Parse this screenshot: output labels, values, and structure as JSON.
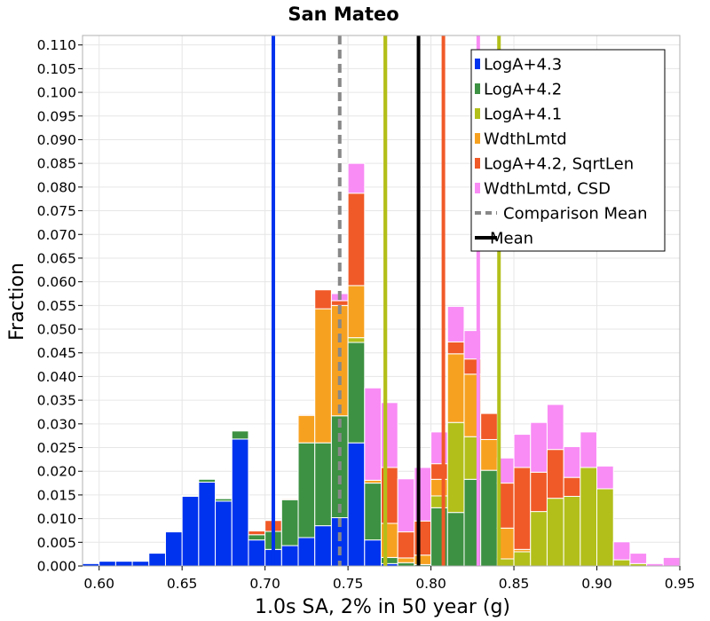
{
  "chart_data": {
    "type": "bar",
    "stacked": true,
    "title": "San Mateo",
    "xlabel": "1.0s SA, 2% in 50 year (g)",
    "ylabel": "Fraction",
    "xlim": [
      0.59,
      0.95
    ],
    "ylim": [
      0.0,
      0.112
    ],
    "x_ticks": [
      "0.60",
      "0.65",
      "0.70",
      "0.75",
      "0.80",
      "0.85",
      "0.90",
      "0.95"
    ],
    "x_tick_values": [
      0.6,
      0.65,
      0.7,
      0.75,
      0.8,
      0.85,
      0.9,
      0.95
    ],
    "y_ticks": [
      "0.000",
      "0.005",
      "0.010",
      "0.015",
      "0.020",
      "0.025",
      "0.030",
      "0.035",
      "0.040",
      "0.045",
      "0.050",
      "0.055",
      "0.060",
      "0.065",
      "0.070",
      "0.075",
      "0.080",
      "0.085",
      "0.090",
      "0.095",
      "0.100",
      "0.105",
      "0.110"
    ],
    "y_tick_values": [
      0.0,
      0.005,
      0.01,
      0.015,
      0.02,
      0.025,
      0.03,
      0.035,
      0.04,
      0.045,
      0.05,
      0.055,
      0.06,
      0.065,
      0.07,
      0.075,
      0.08,
      0.085,
      0.09,
      0.095,
      0.1,
      0.105,
      0.11
    ],
    "grid": true,
    "legend_position": "top-right",
    "bin_width": 0.01,
    "bin_centers": [
      0.595,
      0.605,
      0.615,
      0.625,
      0.635,
      0.645,
      0.655,
      0.665,
      0.675,
      0.685,
      0.695,
      0.705,
      0.715,
      0.725,
      0.735,
      0.745,
      0.755,
      0.765,
      0.775,
      0.785,
      0.795,
      0.805,
      0.815,
      0.825,
      0.835,
      0.845,
      0.855,
      0.865,
      0.875,
      0.885,
      0.895,
      0.905,
      0.915,
      0.925,
      0.935,
      0.945
    ],
    "series": [
      {
        "name": "LogA+4.3",
        "color": "#0033ee",
        "values": [
          0.0005,
          0.001,
          0.001,
          0.001,
          0.0027,
          0.0072,
          0.0147,
          0.0177,
          0.0137,
          0.0268,
          0.0055,
          0.0035,
          0.0043,
          0.006,
          0.0085,
          0.0102,
          0.026,
          0.0055,
          0.0005,
          0,
          0,
          0,
          0,
          0,
          0,
          0,
          0,
          0,
          0,
          0,
          0,
          0,
          0,
          0,
          0,
          0
        ]
      },
      {
        "name": "LogA+4.2",
        "color": "#3d9142",
        "values": [
          0,
          0,
          0,
          0,
          0,
          0,
          0.0002,
          0.0006,
          0.0005,
          0.0017,
          0.0011,
          0.0038,
          0.0097,
          0.02,
          0.0175,
          0.0215,
          0.0212,
          0.012,
          0.0013,
          0.0007,
          0.0003,
          0.0123,
          0.0113,
          0.0183,
          0.0202,
          0,
          0,
          0,
          0,
          0,
          0,
          0,
          0,
          0,
          0,
          0
        ]
      },
      {
        "name": "LogA+4.1",
        "color": "#b2bf1a",
        "values": [
          0,
          0,
          0,
          0,
          0,
          0,
          0,
          0,
          0,
          0,
          0,
          0,
          0,
          0,
          0,
          0,
          0.001,
          0,
          0,
          0,
          0,
          0.0025,
          0.019,
          0.009,
          0,
          0.0015,
          0.003,
          0.0115,
          0.0143,
          0.0147,
          0.0208,
          0.0163,
          0.0013,
          0.0005,
          0,
          0
        ]
      },
      {
        "name": "WdthLmtd",
        "color": "#f7a120",
        "values": [
          0,
          0,
          0,
          0,
          0,
          0,
          0,
          0,
          0,
          0,
          0,
          0,
          0,
          0.0058,
          0.0283,
          0.0233,
          0.011,
          0.0006,
          0.0072,
          0.001,
          0.002,
          0.0035,
          0.0145,
          0.0132,
          0.0065,
          0.0065,
          0.0005,
          0,
          0,
          0,
          0,
          0,
          0,
          0,
          0,
          0
        ]
      },
      {
        "name": "LogA+4.2, SqrtLen",
        "color": "#f05a28",
        "values": [
          0,
          0,
          0,
          0,
          0,
          0,
          0,
          0,
          0,
          0,
          0.0008,
          0.0023,
          0.0002,
          0.0002,
          0.004,
          0.001,
          0.0195,
          0,
          0.0118,
          0.0055,
          0.0072,
          0.0033,
          0.0025,
          0.0032,
          0.0055,
          0.0095,
          0.0173,
          0.0083,
          0.0103,
          0.004,
          0,
          0,
          0,
          0,
          0,
          0
        ]
      },
      {
        "name": "WdthLmtd, CSD",
        "color": "#f98cf5",
        "values": [
          0,
          0,
          0,
          0,
          0,
          0,
          0,
          0,
          0,
          0,
          0,
          0,
          0,
          0,
          0,
          0.0015,
          0.0063,
          0.0195,
          0.0137,
          0.0112,
          0.0113,
          0.0067,
          0.0075,
          0.006,
          0,
          0.0053,
          0.007,
          0.0105,
          0.0095,
          0.0065,
          0.0075,
          0.0048,
          0.0038,
          0.0022,
          0.0005,
          0.0018
        ]
      }
    ],
    "lines": [
      {
        "name": "LogA+4.3",
        "x": 0.705,
        "color": "#0033ee",
        "style": "solid",
        "in_legend": false
      },
      {
        "name": "Comparison Mean",
        "x": 0.745,
        "color": "#888888",
        "style": "dashed",
        "in_legend": true
      },
      {
        "name": "WdthLmtd",
        "x": 0.7725,
        "color": "#f7a120",
        "style": "solid",
        "in_legend": false
      },
      {
        "name": "LogA+4.1",
        "x": 0.7725,
        "color": "#b2bf1a",
        "style": "solid",
        "in_legend": false
      },
      {
        "name": "Mean",
        "x": 0.7925,
        "color": "#000000",
        "style": "solid",
        "in_legend": true
      },
      {
        "name": "LogA+4.2, SqrtLen",
        "x": 0.8075,
        "color": "#f05a28",
        "style": "solid",
        "in_legend": false
      },
      {
        "name": "WdthLmtd, CSD",
        "x": 0.8285,
        "color": "#f98cf5",
        "style": "solid",
        "in_legend": false
      },
      {
        "name": "LogA+4.1",
        "x": 0.841,
        "color": "#b2bf1a",
        "style": "solid",
        "in_legend": false
      }
    ],
    "legend": [
      {
        "label": "LogA+4.3",
        "color": "#0033ee",
        "kind": "patch"
      },
      {
        "label": "LogA+4.2",
        "color": "#3d9142",
        "kind": "patch"
      },
      {
        "label": "LogA+4.1",
        "color": "#b2bf1a",
        "kind": "patch"
      },
      {
        "label": "WdthLmtd",
        "color": "#f7a120",
        "kind": "patch"
      },
      {
        "label": "LogA+4.2, SqrtLen",
        "color": "#f05a28",
        "kind": "patch"
      },
      {
        "label": "WdthLmtd, CSD",
        "color": "#f98cf5",
        "kind": "patch"
      },
      {
        "label": "Comparison Mean",
        "color": "#888888",
        "kind": "dashed-line"
      },
      {
        "label": "Mean",
        "color": "#000000",
        "kind": "line"
      }
    ]
  }
}
